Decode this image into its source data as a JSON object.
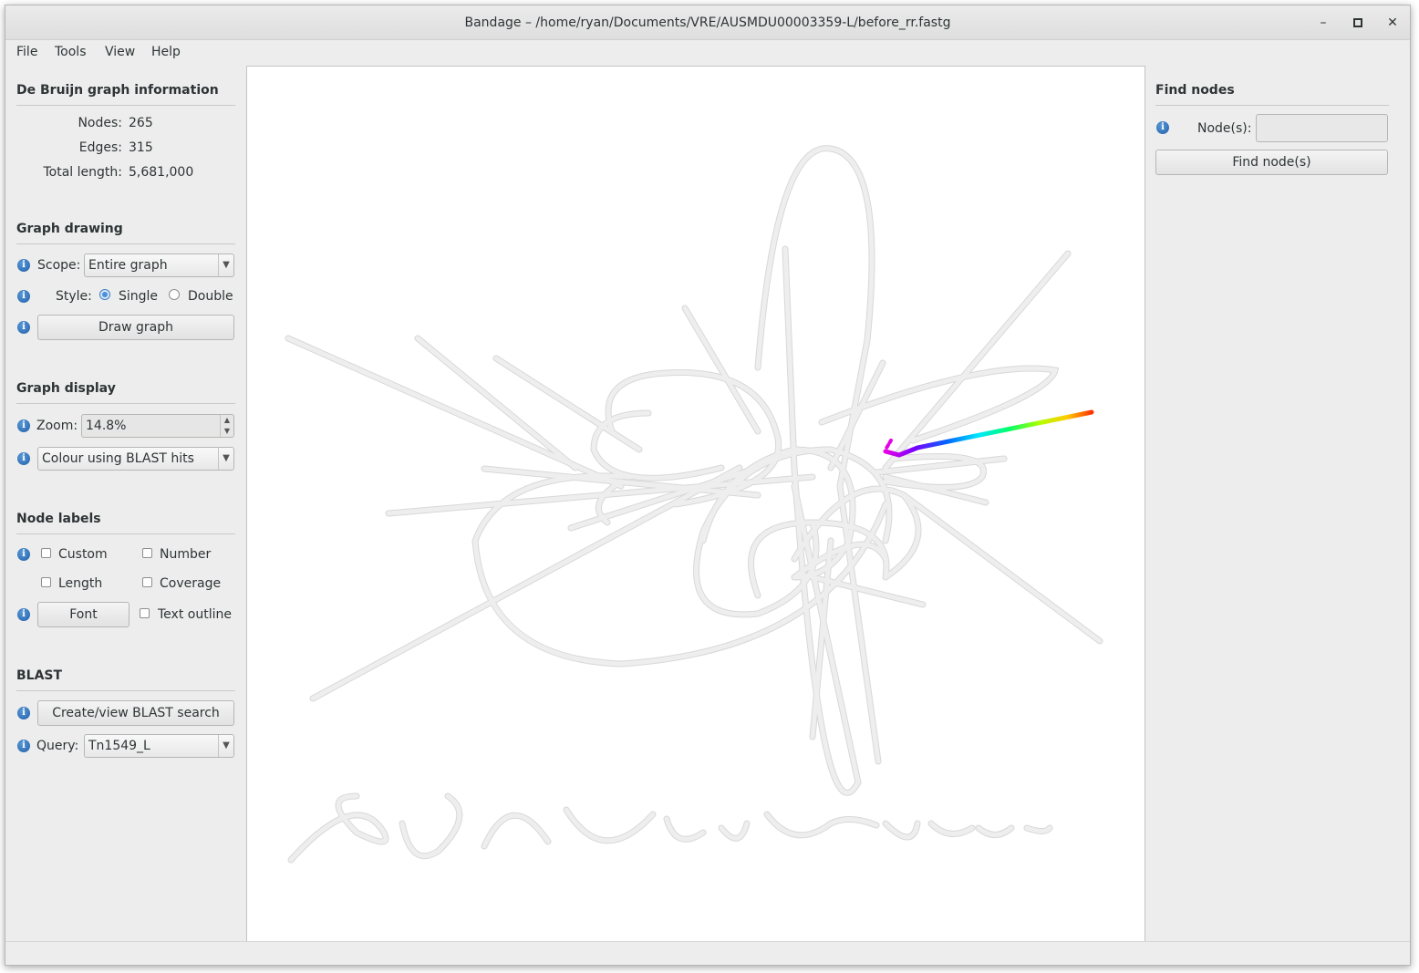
{
  "window": {
    "title": "Bandage – /home/ryan/Documents/VRE/AUSMDU00003359-L/before_rr.fastg",
    "minimize_glyph": "–",
    "maximize_glyph": "▫",
    "close_glyph": "✕"
  },
  "menu": [
    "File",
    "Tools",
    "View",
    "Help"
  ],
  "graph_info": {
    "title": "De Bruijn graph information",
    "nodes_label": "Nodes:",
    "nodes_value": "265",
    "edges_label": "Edges:",
    "edges_value": "315",
    "length_label": "Total length:",
    "length_value": "5,681,000"
  },
  "graph_drawing": {
    "title": "Graph drawing",
    "scope_label": "Scope:",
    "scope_value": "Entire graph",
    "style_label": "Style:",
    "style_single": "Single",
    "style_double": "Double",
    "style_selected": "Single",
    "draw_button": "Draw graph"
  },
  "graph_display": {
    "title": "Graph display",
    "zoom_label": "Zoom:",
    "zoom_value": "14.8%",
    "colour_value": "Colour using BLAST hits"
  },
  "node_labels": {
    "title": "Node labels",
    "custom": "Custom",
    "number": "Number",
    "length": "Length",
    "coverage": "Coverage",
    "font_button": "Font",
    "text_outline": "Text outline"
  },
  "blast": {
    "title": "BLAST",
    "search_button": "Create/view BLAST search",
    "query_label": "Query:",
    "query_value": "Tn1549_L"
  },
  "find_nodes": {
    "title": "Find nodes",
    "nodes_label": "Node(s):",
    "nodes_value": "",
    "find_button": "Find node(s)"
  },
  "icons": {
    "info": "info-icon",
    "combo_arrow": "chevron-down-icon"
  },
  "colors": {
    "node_fill": "#eeeeee",
    "node_outline": "#d8d8d8",
    "blast_gradient": [
      "#e600e6",
      "#7a00ff",
      "#0066ff",
      "#00e6ff",
      "#00ff66",
      "#b3ff00",
      "#ffcc00",
      "#ff3300"
    ]
  }
}
